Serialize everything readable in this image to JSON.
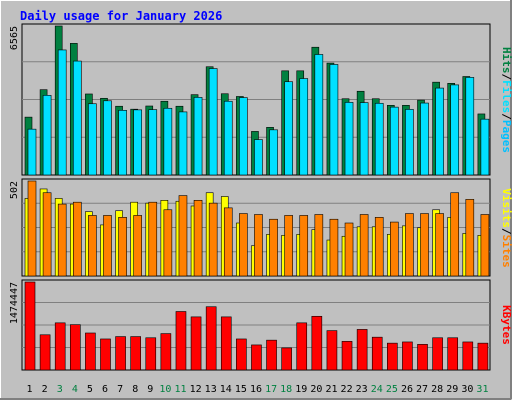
{
  "title": "Daily usage for January 2026",
  "colors": {
    "frame_bg": "#c0c0c0",
    "plot_bg": "#c0c0c0",
    "title_text": "#0000ff",
    "hits": "#008040",
    "files": "#00e0ff",
    "pages": "#00c0ff",
    "visits": "#ffff00",
    "sites": "#ff8000",
    "kbytes": "#ff0000",
    "weekend_label": "#008040",
    "weekday_label": "#000000"
  },
  "chart_data": [
    {
      "type": "bar",
      "name": "hits-files-pages",
      "ymax_label": "6565",
      "ylim": [
        0,
        6565
      ],
      "legend": [
        "Pages",
        "Files",
        "Hits"
      ],
      "categories": [
        "1",
        "2",
        "3",
        "4",
        "5",
        "6",
        "7",
        "8",
        "9",
        "10",
        "11",
        "12",
        "13",
        "14",
        "15",
        "16",
        "17",
        "18",
        "19",
        "20",
        "21",
        "22",
        "23",
        "24",
        "25",
        "26",
        "27",
        "28",
        "29",
        "30",
        "31"
      ],
      "weekend": [
        3,
        4,
        10,
        11,
        17,
        18,
        24,
        25,
        31
      ],
      "series": [
        {
          "name": "Hits",
          "values": [
            2550,
            3760,
            6565,
            5800,
            3570,
            3380,
            3030,
            2900,
            3040,
            3250,
            3030,
            3540,
            4770,
            3580,
            3460,
            1920,
            2100,
            4590,
            4590,
            5630,
            4930,
            3360,
            3690,
            3360,
            3070,
            3070,
            3300,
            4090,
            4040,
            4340,
            2690
          ]
        },
        {
          "name": "Files",
          "values": [
            2020,
            3510,
            5510,
            5020,
            3140,
            3270,
            2850,
            2870,
            2880,
            2940,
            2780,
            3420,
            4690,
            3250,
            3410,
            1560,
            1990,
            4110,
            4250,
            5310,
            4870,
            3200,
            3190,
            3160,
            2990,
            2890,
            3170,
            3830,
            3970,
            4300,
            2460
          ]
        },
        {
          "name": "Pages",
          "values": [
            2020,
            3510,
            5510,
            5020,
            3140,
            3270,
            2850,
            2870,
            2880,
            2940,
            2780,
            3420,
            4690,
            3250,
            3410,
            1560,
            1990,
            4110,
            4250,
            5310,
            4870,
            3200,
            3190,
            3160,
            2990,
            2890,
            3170,
            3830,
            3970,
            4300,
            2460
          ]
        }
      ]
    },
    {
      "type": "bar",
      "name": "visits-sites",
      "ymax_label": "502",
      "ylim": [
        0,
        502
      ],
      "legend": [
        "Sites",
        "/",
        "Visits"
      ],
      "categories": [
        "1",
        "2",
        "3",
        "4",
        "5",
        "6",
        "7",
        "8",
        "9",
        "10",
        "11",
        "12",
        "13",
        "14",
        "15",
        "16",
        "17",
        "18",
        "19",
        "20",
        "21",
        "22",
        "23",
        "24",
        "25",
        "26",
        "27",
        "28",
        "29",
        "30",
        "31"
      ],
      "series": [
        {
          "name": "Visits",
          "values": [
            410,
            460,
            410,
            380,
            340,
            270,
            345,
            390,
            385,
            400,
            395,
            370,
            440,
            420,
            280,
            160,
            220,
            215,
            220,
            245,
            190,
            210,
            260,
            260,
            220,
            265,
            255,
            350,
            310,
            225,
            215
          ]
        },
        {
          "name": "Sites",
          "values": [
            502,
            440,
            380,
            390,
            320,
            320,
            310,
            320,
            390,
            350,
            425,
            400,
            385,
            360,
            330,
            325,
            300,
            320,
            320,
            325,
            300,
            280,
            325,
            310,
            285,
            330,
            330,
            330,
            440,
            405,
            325
          ]
        }
      ]
    },
    {
      "type": "bar",
      "name": "kbytes",
      "ymax_label": "1474447",
      "ylim": [
        0,
        1474447
      ],
      "legend": [
        "KBytes"
      ],
      "categories": [
        "1",
        "2",
        "3",
        "4",
        "5",
        "6",
        "7",
        "8",
        "9",
        "10",
        "11",
        "12",
        "13",
        "14",
        "15",
        "16",
        "17",
        "18",
        "19",
        "20",
        "21",
        "22",
        "23",
        "24",
        "25",
        "26",
        "27",
        "28",
        "29",
        "30",
        "31"
      ],
      "series": [
        {
          "name": "KBytes",
          "values": [
            1474447,
            590000,
            790000,
            760000,
            620000,
            520000,
            560000,
            560000,
            540000,
            610000,
            980000,
            890000,
            1060000,
            890000,
            520000,
            420000,
            500000,
            370000,
            790000,
            900000,
            660000,
            480000,
            680000,
            550000,
            450000,
            470000,
            430000,
            540000,
            540000,
            470000,
            450000
          ]
        }
      ]
    }
  ]
}
